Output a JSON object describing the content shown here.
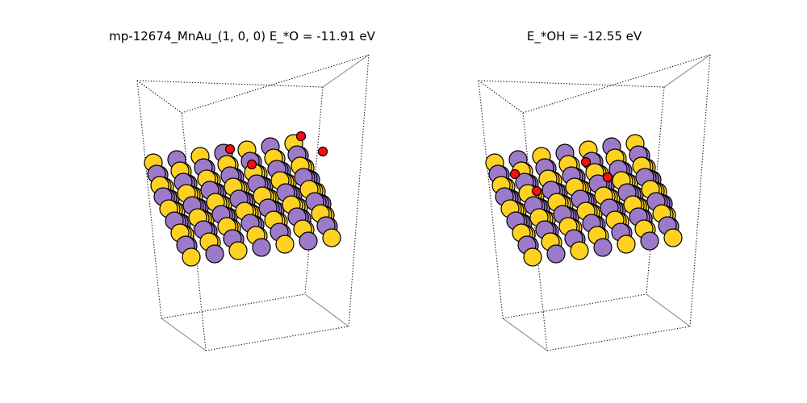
{
  "figure": {
    "panels": [
      {
        "title": "mp-12674_MnAu_(1, 0, 0)  E_*O = -11.91 eV"
      },
      {
        "title": "E_*OH = -12.55 eV"
      }
    ]
  },
  "colors": {
    "Au": "#ffd123",
    "Mn": "#9c7ac7",
    "O": "#ff0d0d",
    "atom_edge": "#000000",
    "cell_dotted": "#000000",
    "cell_solid": "#808080"
  }
}
